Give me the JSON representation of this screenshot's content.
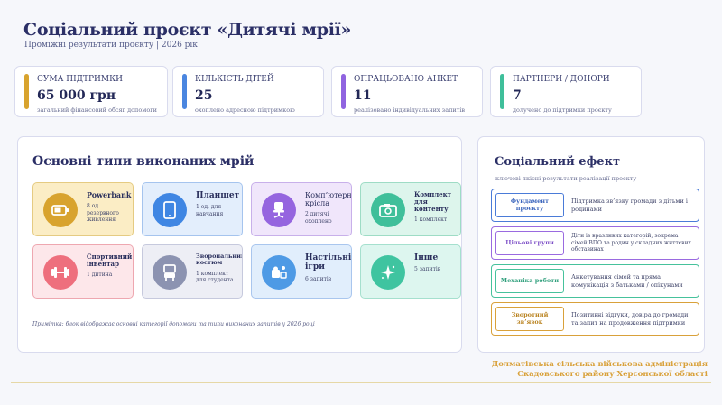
{
  "header": {
    "title": "Соціальний проєкт «Дитячі мрії»",
    "subtitle": "Проміжні результати проєкту | 2026 рік"
  },
  "kpis": [
    {
      "label": "СУМА ПІДТРИМКИ",
      "value": "65 000 грн",
      "note": "загальний фінансовий обсяг допомоги",
      "color": "#d8a32e"
    },
    {
      "label": "КІЛЬКІСТЬ ДІТЕЙ",
      "value": "25",
      "note": "охоплено адресною підтримкою",
      "color": "#4a86e0"
    },
    {
      "label": "ОПРАЦЬОВАНО АНКЕТ",
      "value": "11",
      "note": "реалізовано індивідуальних запитів",
      "color": "#9064e0"
    },
    {
      "label": "ПАРТНЕРИ / ДОНОРИ",
      "value": "7",
      "note": "долучено до підтримки проєкту",
      "color": "#3fbf9a"
    }
  ],
  "main": {
    "title": "Основні типи виконаних мрій",
    "tiles": [
      {
        "name": "Powerbank",
        "desc": "8 од. резервного живлення",
        "icon": "battery-icon",
        "bg": "#fbedc5",
        "border": "#e5cb82",
        "iconbg": "#d8a32e"
      },
      {
        "name": "Планшет",
        "desc": "1 од. для навчання",
        "icon": "tablet-icon",
        "bg": "#e3eefc",
        "border": "#a5c4ee",
        "iconbg": "#3f86e3"
      },
      {
        "name": "Комп’ютерні крісла",
        "desc": "2 дитячі охоплено",
        "icon": "chair-icon",
        "bg": "#f0e6fb",
        "border": "#c8b0ea",
        "iconbg": "#9565df"
      },
      {
        "name": "Комплект для контенту",
        "desc": "1 комплект",
        "icon": "camera-icon",
        "bg": "#ddf5ec",
        "border": "#9edcc5",
        "iconbg": "#3fbf9a"
      },
      {
        "name": "Спортивний інвентар",
        "desc": "1 дитина",
        "icon": "dumbbell-icon",
        "bg": "#fde7ea",
        "border": "#eea7b0",
        "iconbg": "#ee6f7d"
      },
      {
        "name": "Зворопальний костюм",
        "desc": "1 комплект для студента",
        "icon": "costume-icon",
        "bg": "#edeef5",
        "border": "#c6c9dd",
        "iconbg": "#8c93b1"
      },
      {
        "name": "Настільні ігри",
        "desc": "6 запитів",
        "icon": "puzzle-icon",
        "bg": "#e1eefc",
        "border": "#a9c6ee",
        "iconbg": "#4e9ae5"
      },
      {
        "name": "Інше",
        "desc": "5 запитів",
        "icon": "sparkle-icon",
        "bg": "#ddf6ef",
        "border": "#a5e0ce",
        "iconbg": "#3fc4a0"
      }
    ],
    "note": "Примітка: блок відображає основні категорії допомоги та типи виконаних запитів у 2026 році"
  },
  "side": {
    "title": "Соціальний ефект",
    "subtitle": "ключові якісні результати реалізації проєкту",
    "effects": [
      {
        "tag": "Фундамент проєкту",
        "text": "Підтримка зв’язку громади з дітьми і родинами",
        "color": "#4a7bd8"
      },
      {
        "tag": "Цільові групи",
        "text": "Діти із вразливих категорій, зокрема сімей ВПО та родин у складних життєвих обставинах",
        "color": "#9a6ae0"
      },
      {
        "tag": "Механіка роботи",
        "text": "Анкетування сімей та пряма комунікація з батьками / опікунами",
        "color": "#46c29c"
      },
      {
        "tag": "Зворотний зв’язок",
        "text": "Позитивні відгуки, довіра до громади та запит на продовження підтримки",
        "color": "#d9a13a"
      }
    ]
  },
  "footer": {
    "line1": "Долматівська сільська військова адміністрація",
    "line2": "Скадовського району Херсонської області"
  }
}
